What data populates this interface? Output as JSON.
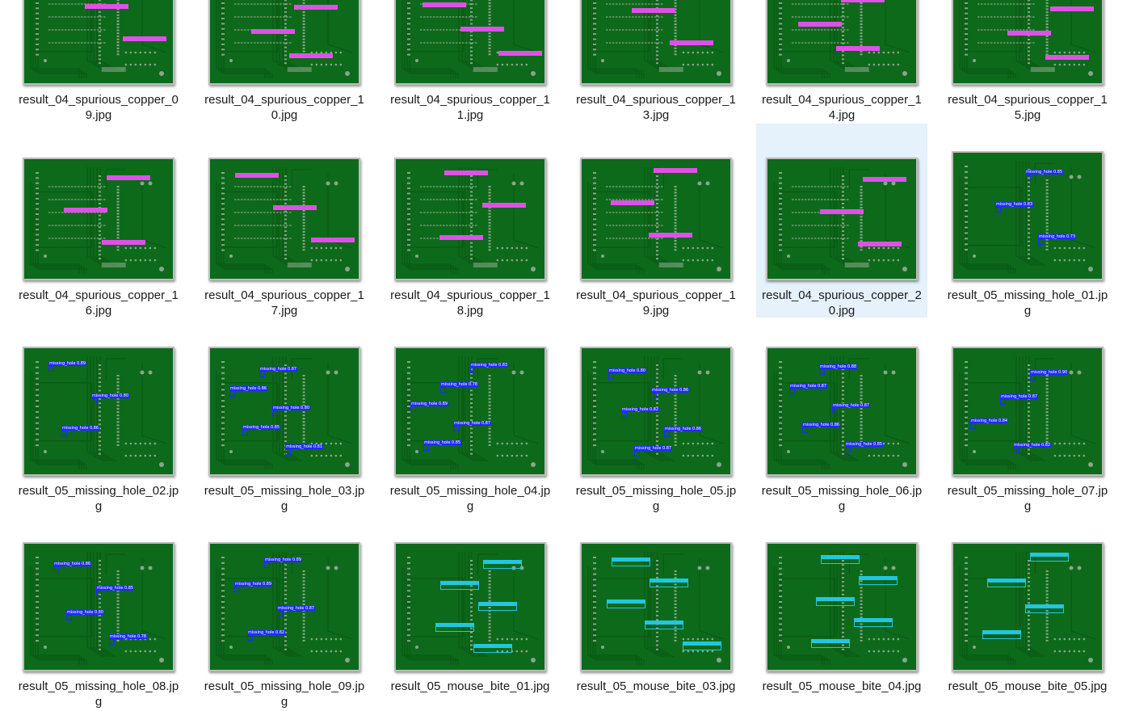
{
  "colors": {
    "board": "#0d6a1b",
    "trace": "#0a5a15",
    "pad": "#8aa58a",
    "missing_hole": "#1f2bff",
    "spurious_copper": "#e050e8",
    "mouse_bite": "#22c6e0",
    "selection": "#e5f1fb"
  },
  "files": [
    {
      "name": "result_04_spurious_copper_09.jpg",
      "type": "spurious_copper",
      "detections": 3
    },
    {
      "name": "result_04_spurious_copper_10.jpg",
      "type": "spurious_copper",
      "detections": 4
    },
    {
      "name": "result_04_spurious_copper_11.jpg",
      "type": "spurious_copper",
      "detections": 4
    },
    {
      "name": "result_04_spurious_copper_13.jpg",
      "type": "spurious_copper",
      "detections": 3
    },
    {
      "name": "result_04_spurious_copper_14.jpg",
      "type": "spurious_copper",
      "detections": 4
    },
    {
      "name": "result_04_spurious_copper_15.jpg",
      "type": "spurious_copper",
      "detections": 4
    },
    {
      "name": "result_04_spurious_copper_16.jpg",
      "type": "spurious_copper",
      "detections": 3
    },
    {
      "name": "result_04_spurious_copper_17.jpg",
      "type": "spurious_copper",
      "detections": 3
    },
    {
      "name": "result_04_spurious_copper_18.jpg",
      "type": "spurious_copper",
      "detections": 3
    },
    {
      "name": "result_04_spurious_copper_19.jpg",
      "type": "spurious_copper",
      "detections": 3
    },
    {
      "name": "result_04_spurious_copper_20.jpg",
      "type": "spurious_copper",
      "detections": 3,
      "selected": true
    },
    {
      "name": "result_05_missing_hole_01.jpg",
      "type": "missing_hole",
      "labels": [
        "missing_hole 0.85",
        "missing_hole 0.83",
        "missing_hole 0.73"
      ]
    },
    {
      "name": "result_05_missing_hole_02.jpg",
      "type": "missing_hole",
      "labels": [
        "missing_hole 0.89",
        "missing_hole 0.80",
        "missing_hole 0.86"
      ]
    },
    {
      "name": "result_05_missing_hole_03.jpg",
      "type": "missing_hole",
      "labels": [
        "missing_hole 0.87",
        "missing_hole 0.86",
        "missing_hole 0.80",
        "missing_hole 0.85",
        "missing_hole 0.81"
      ]
    },
    {
      "name": "result_05_missing_hole_04.jpg",
      "type": "missing_hole",
      "labels": [
        "missing_hole 0.83",
        "missing_hole 0.78",
        "missing_hole 0.89",
        "missing_hole 0.87",
        "missing_hole 0.85"
      ]
    },
    {
      "name": "result_05_missing_hole_05.jpg",
      "type": "missing_hole",
      "labels": [
        "missing_hole 0.80",
        "missing_hole 0.86",
        "missing_hole 0.82",
        "missing_hole 0.86",
        "missing_hole 0.87"
      ]
    },
    {
      "name": "result_05_missing_hole_06.jpg",
      "type": "missing_hole",
      "labels": [
        "missing_hole 0.88",
        "missing_hole 0.87",
        "missing_hole 0.87",
        "missing_hole 0.86",
        "missing_hole 0.85"
      ]
    },
    {
      "name": "result_05_missing_hole_07.jpg",
      "type": "missing_hole",
      "labels": [
        "missing_hole 0.90",
        "missing_hole 0.87",
        "missing_hole 0.84",
        "missing_hole 0.82"
      ]
    },
    {
      "name": "result_05_missing_hole_08.jpg",
      "type": "missing_hole",
      "labels": [
        "missing_hole 0.86",
        "missing_hole 0.85",
        "missing_hole 0.80",
        "missing_hole 0.78"
      ]
    },
    {
      "name": "result_05_missing_hole_09.jpg",
      "type": "missing_hole",
      "labels": [
        "missing_hole 0.89",
        "missing_hole 0.89",
        "missing_hole 0.87",
        "missing_hole 0.82"
      ]
    },
    {
      "name": "result_05_mouse_bite_01.jpg",
      "type": "mouse_bite",
      "detections": 5
    },
    {
      "name": "result_05_mouse_bite_03.jpg",
      "type": "mouse_bite",
      "detections": 5
    },
    {
      "name": "result_05_mouse_bite_04.jpg",
      "type": "mouse_bite",
      "detections": 5
    },
    {
      "name": "result_05_mouse_bite_05.jpg",
      "type": "mouse_bite",
      "detections": 4
    }
  ]
}
